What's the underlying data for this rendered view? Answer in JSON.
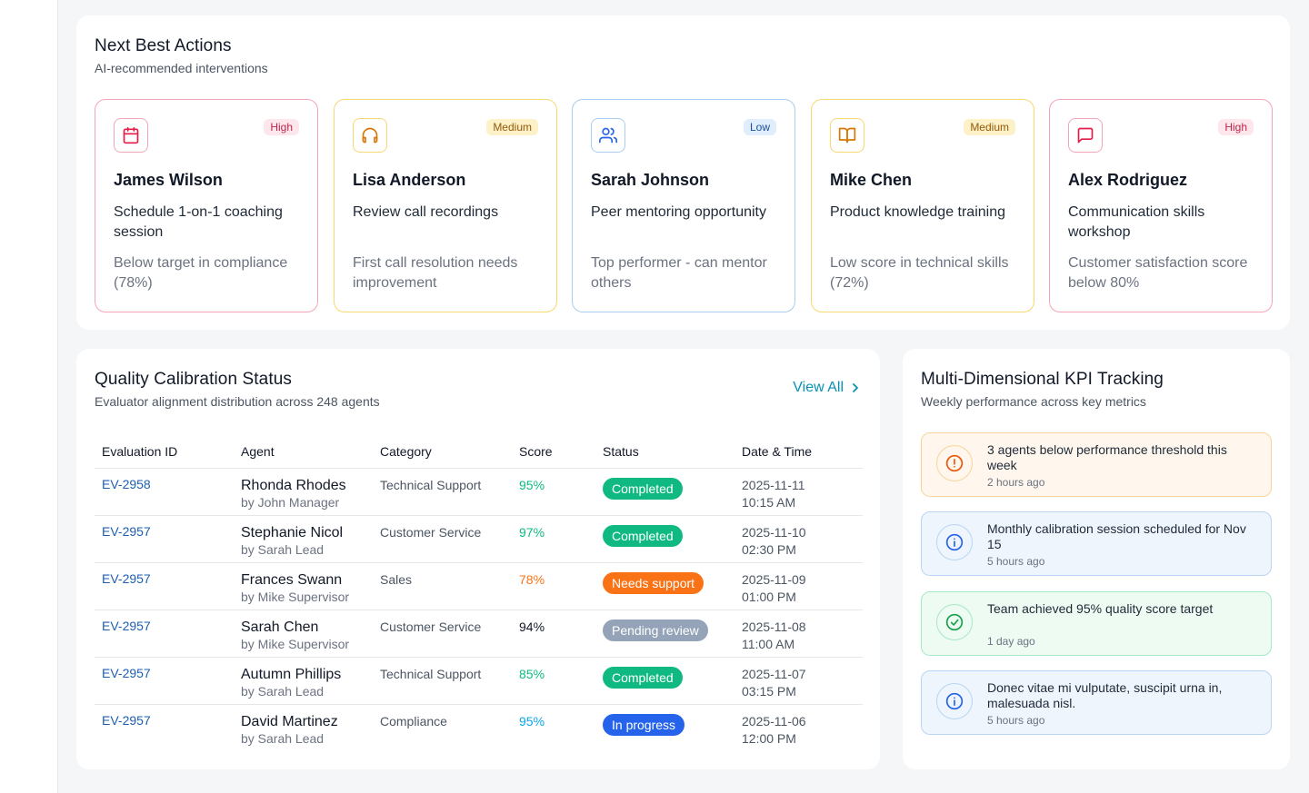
{
  "next_best_actions": {
    "title": "Next Best Actions",
    "subtitle": "AI-recommended interventions",
    "cards": [
      {
        "priority": "High",
        "name": "James Wilson",
        "action": "Schedule 1-on-1 coaching session",
        "reason": "Below target in compliance (78%)",
        "icon": "calendar-icon",
        "accent": "#f4a6b8",
        "badge_bg": "#fde7ec",
        "badge_fg": "#c0264a",
        "icon_color": "#e11d48"
      },
      {
        "priority": "Medium",
        "name": "Lisa Anderson",
        "action": "Review call recordings",
        "reason": "First call resolution needs improvement",
        "icon": "headphones-icon",
        "accent": "#f8d870",
        "badge_bg": "#fdf1c7",
        "badge_fg": "#92590a",
        "icon_color": "#d97706"
      },
      {
        "priority": "Low",
        "name": "Sarah Johnson",
        "action": "Peer mentoring opportunity",
        "reason": "Top performer - can mentor others",
        "icon": "users-icon",
        "accent": "#a9cdf0",
        "badge_bg": "#e0edfb",
        "badge_fg": "#1d4f91",
        "icon_color": "#2563eb"
      },
      {
        "priority": "Medium",
        "name": "Mike Chen",
        "action": "Product knowledge training",
        "reason": "Low score in technical skills (72%)",
        "icon": "book-open-icon",
        "accent": "#f8d870",
        "badge_bg": "#fdf1c7",
        "badge_fg": "#92590a",
        "icon_color": "#d97706"
      },
      {
        "priority": "High",
        "name": "Alex Rodriguez",
        "action": "Communication skills workshop",
        "reason": "Customer satisfaction score below 80%",
        "icon": "message-square-icon",
        "accent": "#f4a6b8",
        "badge_bg": "#fde7ec",
        "badge_fg": "#c0264a",
        "icon_color": "#e11d48"
      }
    ]
  },
  "quality_calibration": {
    "title": "Quality Calibration Status",
    "subtitle": "Evaluator alignment distribution across 248 agents",
    "view_all": "View All",
    "columns": [
      "Evaluation ID",
      "Agent",
      "Category",
      "Score",
      "Status",
      "Date & Time"
    ],
    "rows": [
      {
        "id": "EV-2958",
        "agent": "Rhonda Rhodes",
        "by": "by John Manager",
        "category": "Technical Support",
        "score": "95%",
        "score_color": "#10b981",
        "status": "Completed",
        "status_color": "#10b981",
        "date": "2025-11-11",
        "time": "10:15 AM"
      },
      {
        "id": "EV-2957",
        "agent": "Stephanie Nicol",
        "by": "by Sarah Lead",
        "category": "Customer Service",
        "score": "97%",
        "score_color": "#10b981",
        "status": "Completed",
        "status_color": "#10b981",
        "date": "2025-11-10",
        "time": "02:30 PM"
      },
      {
        "id": "EV-2957",
        "agent": "Frances Swann",
        "by": "by Mike Supervisor",
        "category": "Sales",
        "score": "78%",
        "score_color": "#f97316",
        "status": "Needs support",
        "status_color": "#f97316",
        "date": "2025-11-09",
        "time": "01:00 PM"
      },
      {
        "id": "EV-2957",
        "agent": "Sarah Chen",
        "by": "by Mike Supervisor",
        "category": "Customer Service",
        "score": "94%",
        "score_color": "#111827",
        "status": "Pending review",
        "status_color": "#94a3b8",
        "date": "2025-11-08",
        "time": "11:00 AM"
      },
      {
        "id": "EV-2957",
        "agent": "Autumn Phillips",
        "by": "by Sarah Lead",
        "category": "Technical Support",
        "score": "85%",
        "score_color": "#10b981",
        "status": "Completed",
        "status_color": "#10b981",
        "date": "2025-11-07",
        "time": "03:15 PM"
      },
      {
        "id": "EV-2957",
        "agent": "David Martinez",
        "by": "by Sarah Lead",
        "category": "Compliance",
        "score": "95%",
        "score_color": "#0ea5e9",
        "status": "In progress",
        "status_color": "#2563eb",
        "date": "2025-11-06",
        "time": "12:00 PM"
      }
    ]
  },
  "kpi_tracking": {
    "title": "Multi-Dimensional KPI Tracking",
    "subtitle": "Weekly performance across key metrics",
    "alerts": [
      {
        "message": "3 agents below performance threshold this week",
        "time": "2 hours ago",
        "icon": "alert-circle-icon",
        "bg": "#fff7ed",
        "border": "#f8d49a",
        "icon_color": "#ea580c"
      },
      {
        "message": "Monthly calibration session scheduled for Nov 15",
        "time": "5 hours ago",
        "icon": "info-icon",
        "bg": "#eef5fd",
        "border": "#b9d5f3",
        "icon_color": "#2563eb"
      },
      {
        "message": "Team achieved 95% quality score target",
        "time": "1 day ago",
        "icon": "check-circle-icon",
        "bg": "#edfbf3",
        "border": "#a7e8c4",
        "icon_color": "#16a34a"
      },
      {
        "message": "Donec vitae mi vulputate, suscipit urna in, malesuada nisl.",
        "time": "5 hours ago",
        "icon": "info-icon",
        "bg": "#eef5fd",
        "border": "#b9d5f3",
        "icon_color": "#2563eb"
      }
    ]
  }
}
